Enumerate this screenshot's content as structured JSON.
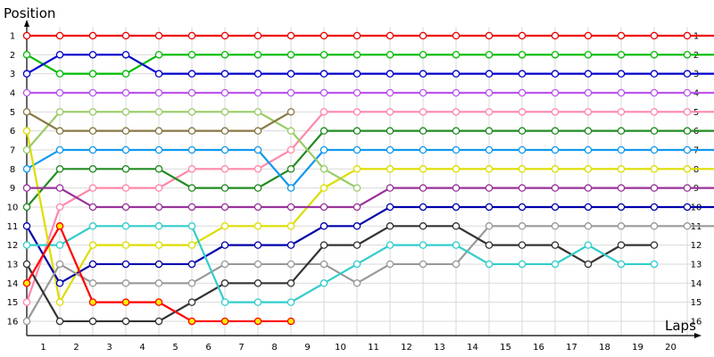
{
  "chart_data": {
    "type": "line",
    "ylabel": "Position",
    "xlabel": "Laps",
    "y_ticks": [
      "1",
      "2",
      "3",
      "4",
      "5",
      "6",
      "7",
      "8",
      "9",
      "10",
      "11",
      "12",
      "13",
      "14",
      "15",
      "16"
    ],
    "x_ticks": [
      "1",
      "2",
      "3",
      "4",
      "5",
      "6",
      "7",
      "8",
      "9",
      "10",
      "11",
      "12",
      "13",
      "14",
      "15",
      "16",
      "17",
      "18",
      "19",
      "20"
    ],
    "ylim": [
      1,
      16
    ],
    "grid": true,
    "series": [
      {
        "color": "#ee0000",
        "values": [
          1,
          1,
          1,
          1,
          1,
          1,
          1,
          1,
          1,
          1,
          1,
          1,
          1,
          1,
          1,
          1,
          1,
          1,
          1,
          1,
          1,
          1
        ]
      },
      {
        "color": "#00bb00",
        "values": [
          2,
          3,
          3,
          3,
          2,
          2,
          2,
          2,
          2,
          2,
          2,
          2,
          2,
          2,
          2,
          2,
          2,
          2,
          2,
          2,
          2,
          2
        ]
      },
      {
        "color": "#0000cc",
        "values": [
          3,
          2,
          2,
          2,
          3,
          3,
          3,
          3,
          3,
          3,
          3,
          3,
          3,
          3,
          3,
          3,
          3,
          3,
          3,
          3,
          3,
          3
        ]
      },
      {
        "color": "#bb55ee",
        "values": [
          4,
          4,
          4,
          4,
          4,
          4,
          4,
          4,
          4,
          4,
          4,
          4,
          4,
          4,
          4,
          4,
          4,
          4,
          4,
          4,
          4,
          4
        ]
      },
      {
        "color": "#ff88aa",
        "values": [
          15,
          10,
          9,
          9,
          9,
          8,
          8,
          8,
          7,
          5,
          5,
          5,
          5,
          5,
          5,
          5,
          5,
          5,
          5,
          5,
          5,
          5
        ]
      },
      {
        "color": "#228b22",
        "values": [
          10,
          8,
          8,
          8,
          8,
          9,
          9,
          9,
          8,
          6,
          6,
          6,
          6,
          6,
          6,
          6,
          6,
          6,
          6,
          6,
          6,
          6
        ]
      },
      {
        "color": "#1199ee",
        "values": [
          8,
          7,
          7,
          7,
          7,
          7,
          7,
          7,
          9,
          7,
          7,
          7,
          7,
          7,
          7,
          7,
          7,
          7,
          7,
          7,
          7,
          7
        ]
      },
      {
        "color": "#dddd00",
        "values": [
          6,
          15,
          12,
          12,
          12,
          12,
          11,
          11,
          11,
          9,
          8,
          8,
          8,
          8,
          8,
          8,
          8,
          8,
          8,
          8,
          8,
          8
        ]
      },
      {
        "color": "#993399",
        "values": [
          9,
          9,
          10,
          10,
          10,
          10,
          10,
          10,
          10,
          10,
          10,
          9,
          9,
          9,
          9,
          9,
          9,
          9,
          9,
          9,
          9,
          9
        ]
      },
      {
        "color": "#0000aa",
        "values": [
          11,
          14,
          13,
          13,
          13,
          13,
          12,
          12,
          12,
          11,
          11,
          10,
          10,
          10,
          10,
          10,
          10,
          10,
          10,
          10,
          10,
          10
        ]
      },
      {
        "color": "#999999",
        "values": [
          16,
          13,
          14,
          14,
          14,
          14,
          13,
          13,
          13,
          13,
          14,
          13,
          13,
          13,
          11,
          11,
          11,
          11,
          11,
          11,
          11,
          11
        ]
      },
      {
        "color": "#333333",
        "values": [
          13,
          16,
          16,
          16,
          16,
          15,
          14,
          14,
          14,
          12,
          12,
          11,
          11,
          11,
          12,
          12,
          12,
          13,
          12,
          12
        ]
      },
      {
        "color": "#33cccc",
        "values": [
          12,
          12,
          11,
          11,
          11,
          11,
          15,
          15,
          15,
          14,
          13,
          12,
          12,
          12,
          13,
          13,
          13,
          12,
          13,
          13
        ]
      },
      {
        "color": "#99cc66",
        "values": [
          7,
          5,
          5,
          5,
          5,
          5,
          5,
          5,
          6,
          8,
          9
        ]
      },
      {
        "color": "#887744",
        "values": [
          5,
          6,
          6,
          6,
          6,
          6,
          6,
          6,
          5
        ]
      },
      {
        "color": "#ff0000",
        "marker_fill": "#ffee00",
        "values": [
          14,
          11,
          15,
          15,
          15,
          16,
          16,
          16,
          16
        ]
      }
    ]
  }
}
